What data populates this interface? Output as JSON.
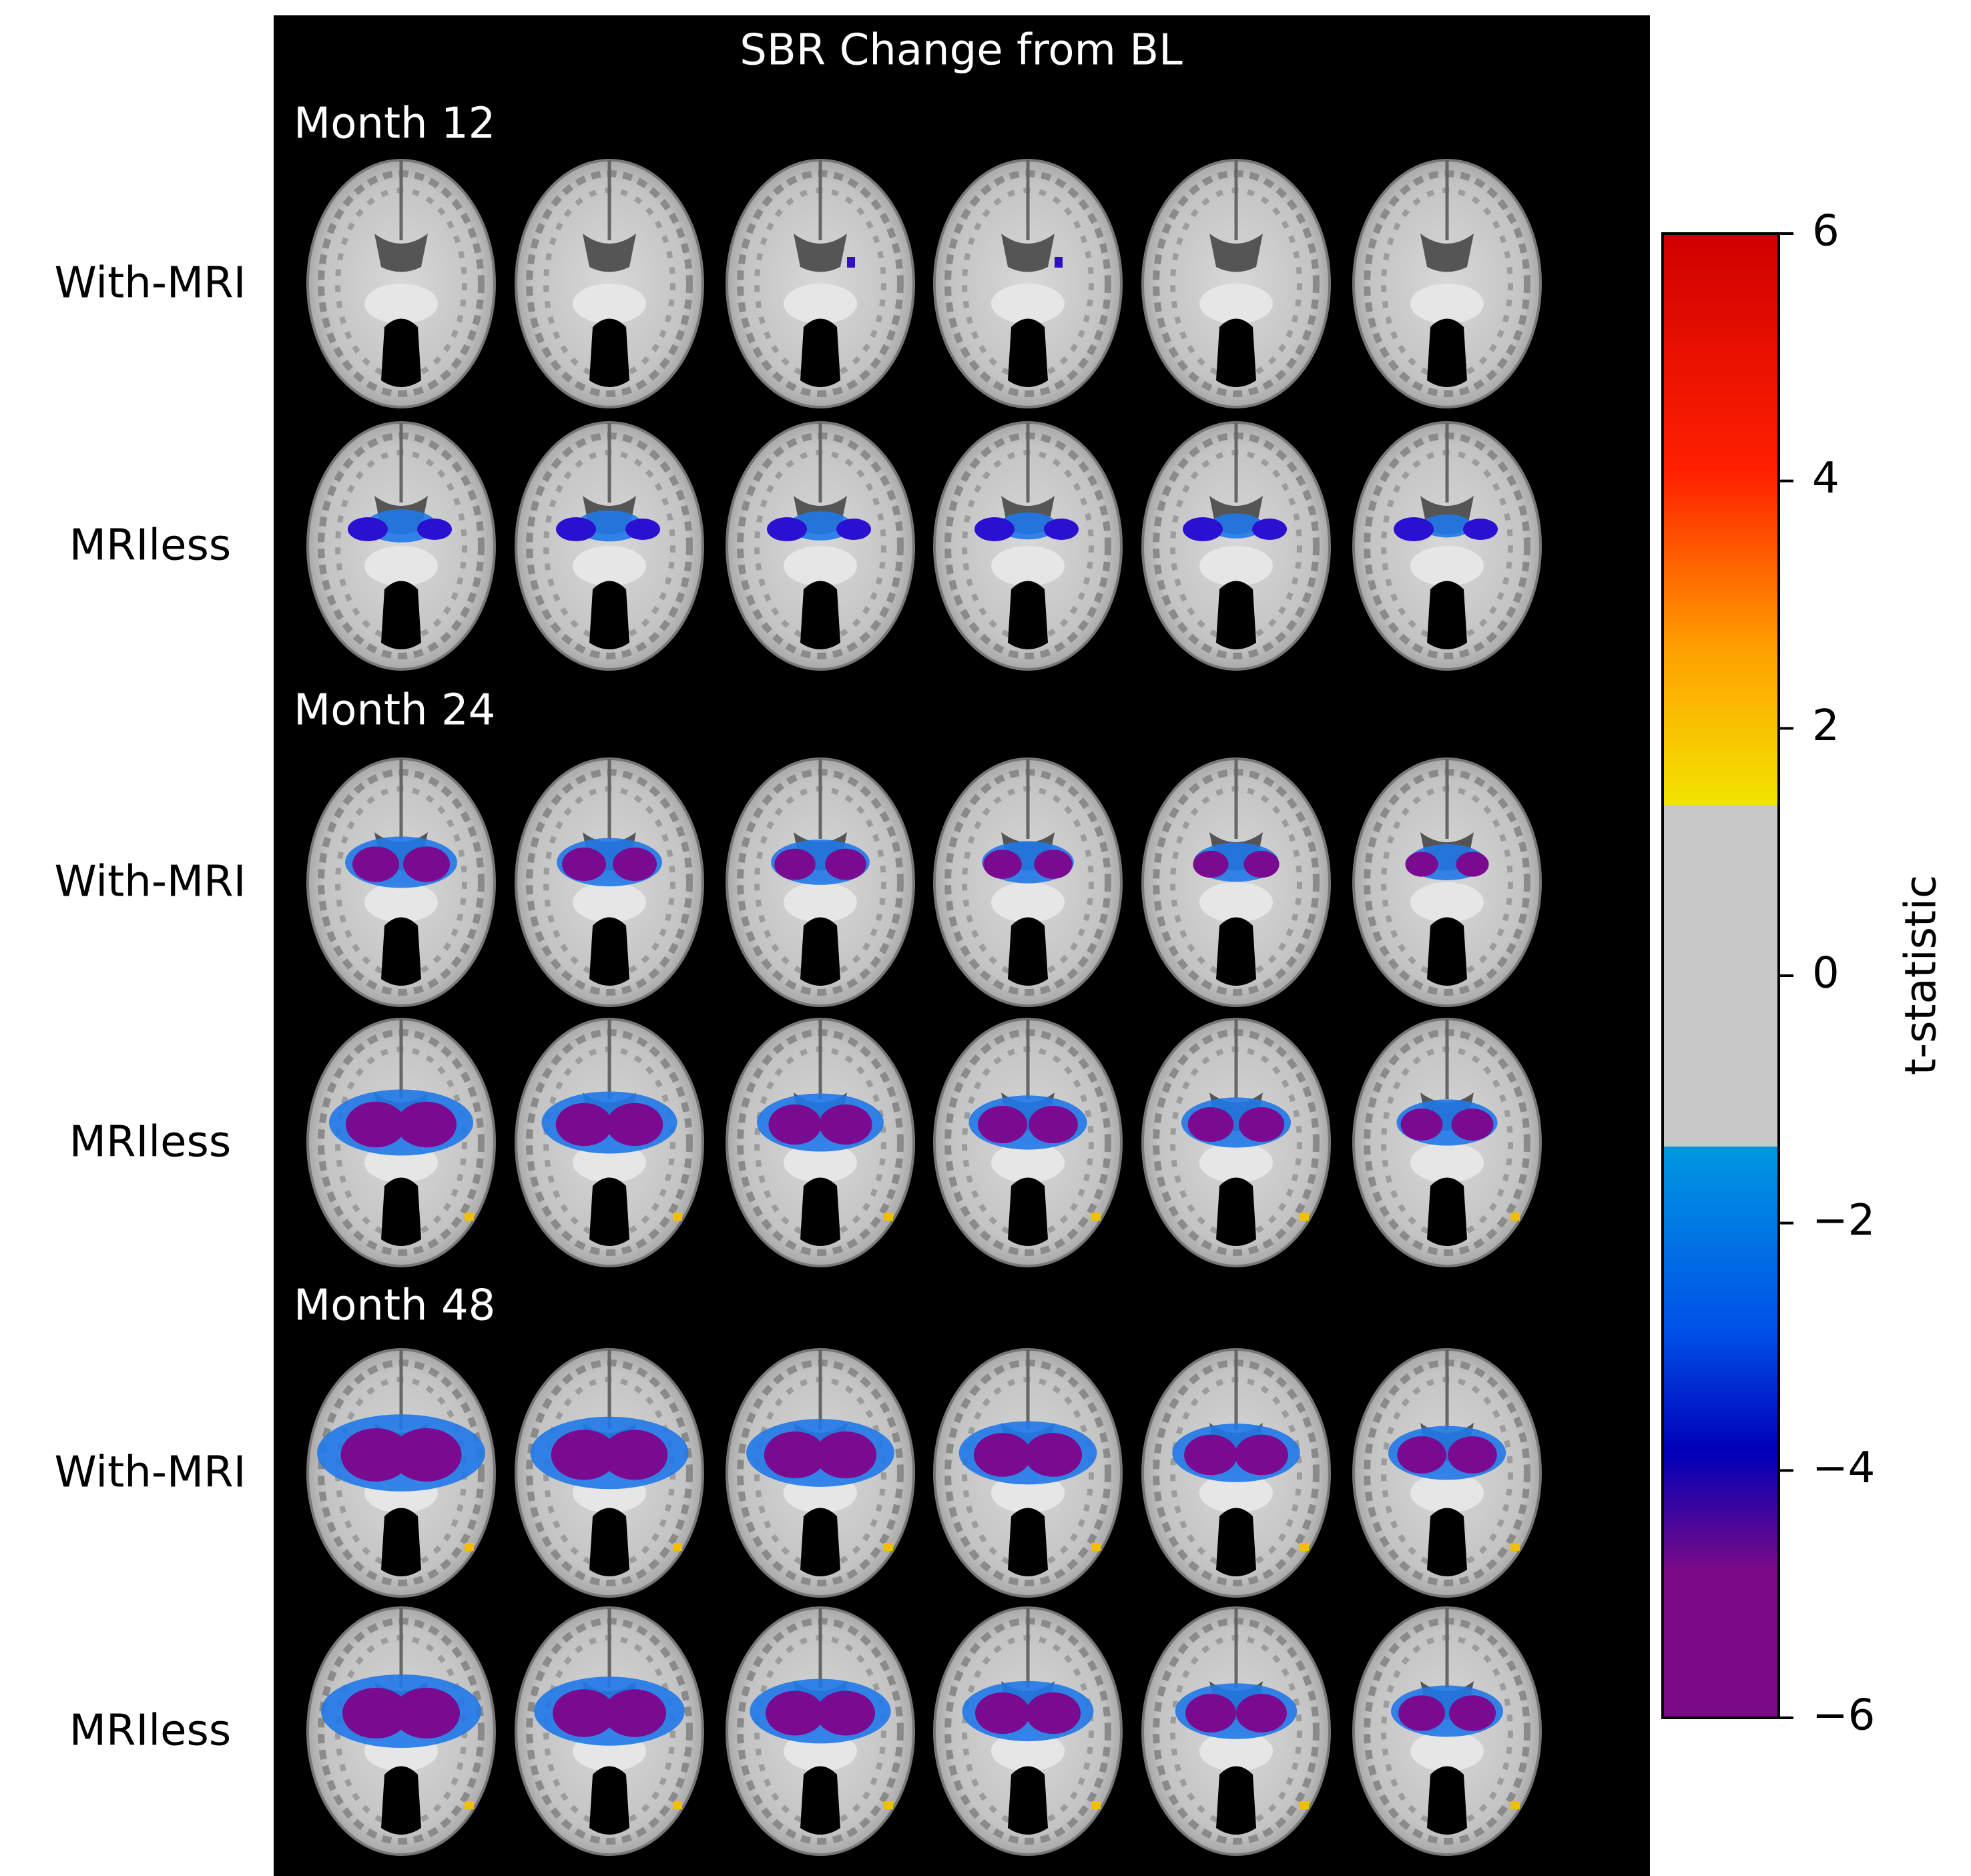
{
  "title": "SBR Change from BL",
  "sections": [
    {
      "label": "Month 12",
      "rows": [
        "With-MRI",
        "MRIless"
      ]
    },
    {
      "label": "Month 24",
      "rows": [
        "With-MRI",
        "MRIless"
      ]
    },
    {
      "label": "Month 48",
      "rows": [
        "With-MRI",
        "MRIless"
      ]
    }
  ],
  "colorbar": {
    "label": "t-statistic",
    "lim": [
      -6,
      6
    ],
    "ticks": [
      {
        "value": -6,
        "label": "−6"
      },
      {
        "value": -4,
        "label": "−4"
      },
      {
        "value": -2,
        "label": "−2"
      },
      0,
      2,
      4,
      6
    ]
  }
}
